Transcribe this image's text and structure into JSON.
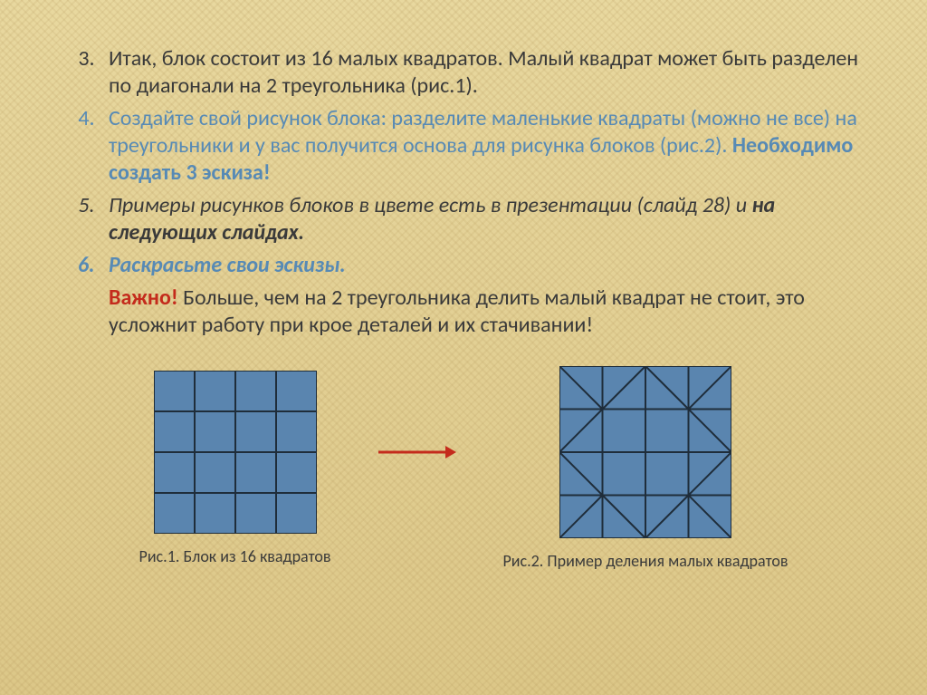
{
  "list": {
    "start": 3,
    "item3": "Итак, блок состоит из 16 малых квадратов. Малый  квадрат может быть разделен по диагонали на 2 треугольника (рис.1).",
    "item4_a": "Создайте свой рисунок блока: разделите маленькие квадраты (можно не все) на треугольники и у вас получится основа для рисунка блоков (рис.2).  ",
    "item4_b": "Необходимо создать 3 эскиза!",
    "item5_a": "Примеры рисунков блоков в цвете есть в презентации (слайд 28) и ",
    "item5_b": "на следующих слайдах.",
    "item6": "Раскрасьте свои эскизы."
  },
  "note": {
    "label": "Важно!",
    "text": " Больше, чем на 2 треугольника делить малый квадрат не стоит, это усложнит работу при крое деталей и их стачивании!"
  },
  "figures": {
    "fig1": {
      "caption": "Рис.1. Блок из 16 квадратов",
      "size": 180,
      "cells": 4,
      "fill": "#5a85af",
      "stroke": "#1f2d3a",
      "stroke_width": 2
    },
    "arrow": {
      "color": "#c42b1c",
      "width": 90,
      "stroke_width": 3
    },
    "fig2": {
      "caption": "Рис.2. Пример деления малых квадратов",
      "size": 190,
      "cells": 4,
      "fill": "#5a85af",
      "stroke": "#1f2d3a",
      "stroke_width": 2,
      "diagonals": [
        [
          0,
          0,
          "\\"
        ],
        [
          1,
          0,
          "/"
        ],
        [
          2,
          0,
          "\\"
        ],
        [
          3,
          0,
          "/"
        ],
        [
          0,
          1,
          "/"
        ],
        [
          3,
          1,
          "\\"
        ],
        [
          0,
          2,
          "\\"
        ],
        [
          3,
          2,
          "/"
        ],
        [
          0,
          3,
          "/"
        ],
        [
          1,
          3,
          "\\"
        ],
        [
          2,
          3,
          "/"
        ],
        [
          3,
          3,
          "\\"
        ]
      ]
    }
  }
}
